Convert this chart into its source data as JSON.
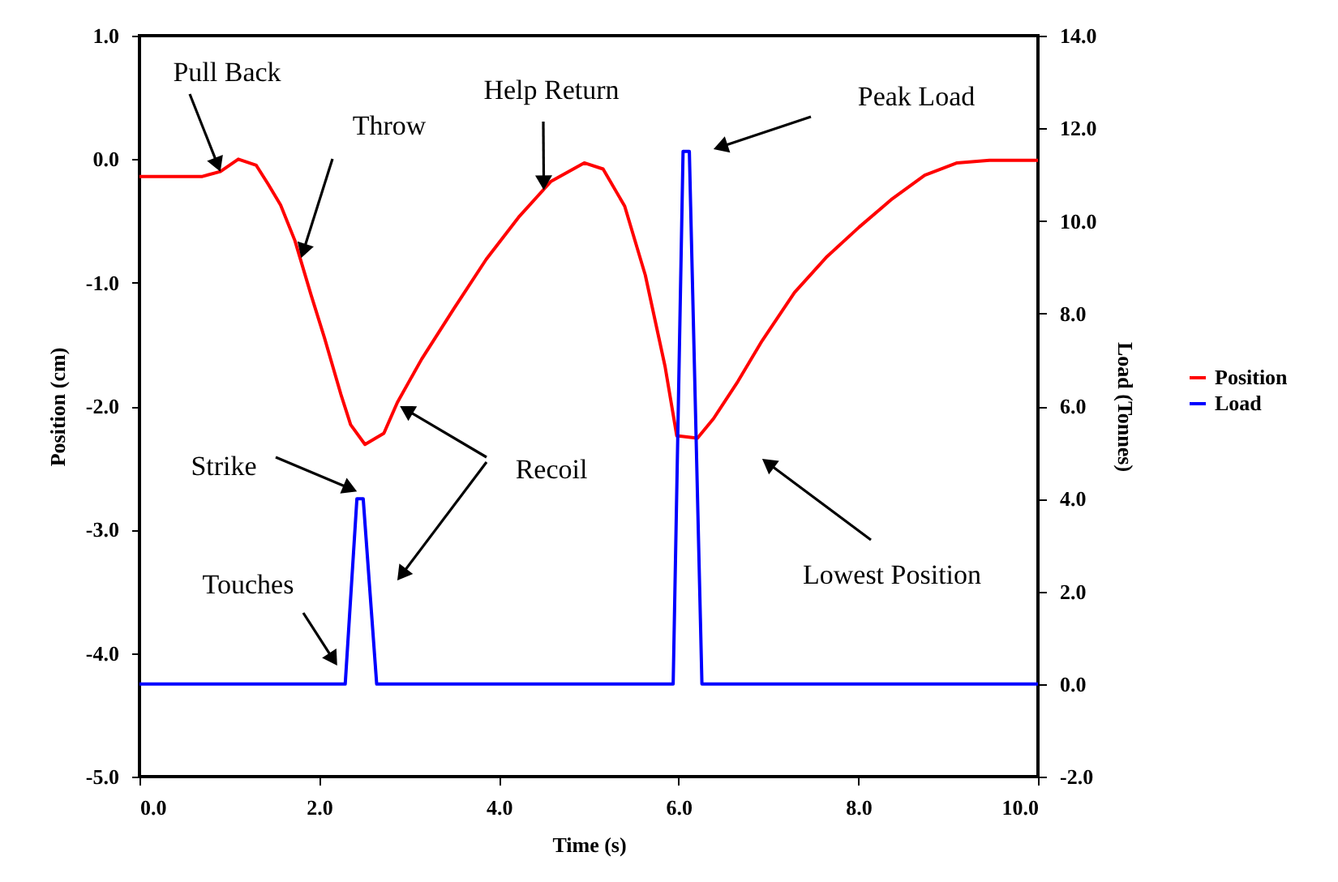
{
  "chart_data": {
    "type": "line",
    "xlabel": "Time (s)",
    "ylabel": "Position (cm)",
    "y2label": "Load (Tonnes)",
    "xlim": [
      0,
      10
    ],
    "xticks": [
      {
        "value": 0,
        "label": "0.0"
      },
      {
        "value": 2,
        "label": "2.0"
      },
      {
        "value": 4,
        "label": "4.0"
      },
      {
        "value": 6,
        "label": "6.0"
      },
      {
        "value": 8,
        "label": "8.0"
      },
      {
        "value": 10,
        "label": "10.0"
      }
    ],
    "ylim": [
      -5,
      1
    ],
    "yticks": [
      {
        "value": -5,
        "label": "-5.0"
      },
      {
        "value": -4,
        "label": "-4.0"
      },
      {
        "value": -3,
        "label": "-3.0"
      },
      {
        "value": -2,
        "label": "-2.0"
      },
      {
        "value": -1,
        "label": "-1.0"
      },
      {
        "value": 0,
        "label": "0.0"
      },
      {
        "value": 1,
        "label": "1.0"
      }
    ],
    "y2lim": [
      -2,
      14
    ],
    "y2ticks": [
      {
        "value": -2,
        "label": "-2.0"
      },
      {
        "value": 0,
        "label": "0.0"
      },
      {
        "value": 2,
        "label": "2.0"
      },
      {
        "value": 4,
        "label": "4.0"
      },
      {
        "value": 6,
        "label": "6.0"
      },
      {
        "value": 8,
        "label": "8.0"
      },
      {
        "value": 10,
        "label": "10.0"
      },
      {
        "value": 12,
        "label": "12.0"
      },
      {
        "value": 14,
        "label": "14.0"
      }
    ],
    "series": [
      {
        "name": "Position",
        "color": "#ff0000",
        "x": [
          0,
          0.7,
          0.9,
          1.1,
          1.3,
          1.43,
          1.57,
          1.73,
          1.91,
          2.06,
          2.24,
          2.35,
          2.51,
          2.72,
          2.87,
          3.14,
          3.5,
          3.86,
          4.22,
          4.58,
          4.95,
          5.16,
          5.4,
          5.63,
          5.85,
          5.98,
          6.21,
          6.39,
          6.66,
          6.93,
          7.29,
          7.65,
          8.01,
          8.38,
          8.74,
          9.1,
          9.46,
          10
        ],
        "values": [
          -0.14,
          -0.14,
          -0.1,
          0.0,
          -0.05,
          -0.2,
          -0.37,
          -0.66,
          -1.1,
          -1.45,
          -1.9,
          -2.15,
          -2.31,
          -2.22,
          -1.97,
          -1.62,
          -1.21,
          -0.81,
          -0.47,
          -0.18,
          -0.03,
          -0.08,
          -0.38,
          -0.94,
          -1.68,
          -2.24,
          -2.26,
          -2.1,
          -1.8,
          -1.47,
          -1.08,
          -0.79,
          -0.55,
          -0.32,
          -0.13,
          -0.03,
          -0.01,
          -0.01
        ]
      },
      {
        "name": "Load",
        "color": "#0000ff",
        "axis": "y2",
        "x": [
          0,
          2.29,
          2.42,
          2.49,
          2.64,
          5.94,
          6.05,
          6.12,
          6.26,
          10
        ],
        "values": [
          0,
          0,
          4.0,
          4.0,
          0,
          0,
          11.5,
          11.5,
          0,
          0
        ]
      }
    ],
    "annotations": [
      {
        "text": "Pull Back",
        "x": 0.9,
        "y": -0.1
      },
      {
        "text": "Throw",
        "x": 1.8,
        "y": -0.8
      },
      {
        "text": "Help Return",
        "x": 4.5,
        "y": -0.25
      },
      "Peak Load",
      {
        "text": "Strike",
        "x": 2.42,
        "y": -2.69
      },
      {
        "text": "Recoil",
        "x": 2.9,
        "y": -2.0
      },
      {
        "text": "Touches",
        "x": 2.2,
        "y": -4.1
      },
      "Lowest Position"
    ],
    "legend": "right",
    "grid": false,
    "marker": "none",
    "line_style": "solid"
  }
}
